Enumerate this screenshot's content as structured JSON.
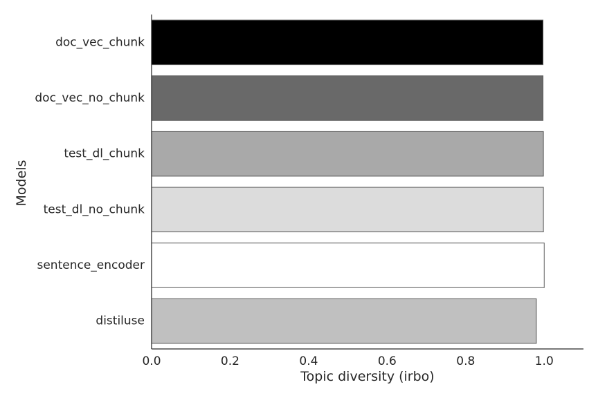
{
  "chart_data": {
    "type": "bar",
    "orientation": "horizontal",
    "categories": [
      "doc_vec_chunk",
      "doc_vec_no_chunk",
      "test_dl_chunk",
      "test_dl_no_chunk",
      "sentence_encoder",
      "distiluse"
    ],
    "values": [
      0.997,
      0.997,
      0.998,
      0.998,
      1.0,
      0.98
    ],
    "bar_colors": [
      "#000000",
      "#696969",
      "#a9a9a9",
      "#dcdcdc",
      "#ffffff",
      "#c0c0c0"
    ],
    "xlabel": "Topic diversity (irbo)",
    "ylabel": "Models",
    "xlim": [
      0,
      1.1
    ],
    "xticks": [
      "0.0",
      "0.2",
      "0.4",
      "0.6",
      "0.8",
      "1.0"
    ],
    "grid": false,
    "legend": "none"
  }
}
